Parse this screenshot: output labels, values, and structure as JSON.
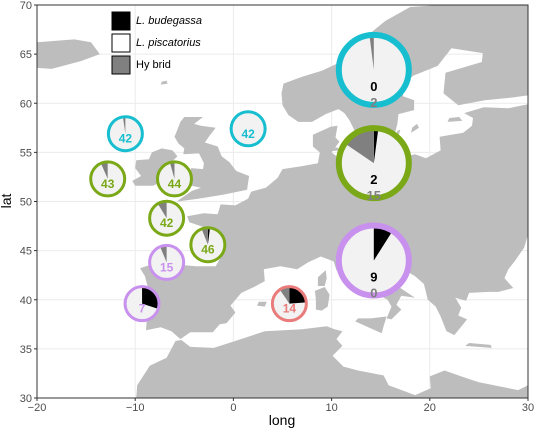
{
  "chart_data": {
    "type": "map-pie",
    "xlabel": "long",
    "ylabel": "lat",
    "xlim": [
      -20,
      30
    ],
    "ylim": [
      30,
      70
    ],
    "xticks": [
      -20,
      -10,
      0,
      10,
      20,
      30
    ],
    "yticks": [
      30,
      35,
      40,
      45,
      50,
      55,
      60,
      65,
      70
    ],
    "xtick_labels": [
      "−20",
      "−10",
      "0",
      "10",
      "20",
      "30"
    ],
    "ytick_labels": [
      "30",
      "35",
      "40",
      "45",
      "50",
      "55",
      "60",
      "65",
      "70"
    ],
    "grid": true,
    "legend": {
      "placement": "top-left",
      "entries": [
        {
          "label": "L. budegassa",
          "color": "#000000",
          "italic": true
        },
        {
          "label": "L. piscatorius",
          "color": "#ffffff",
          "italic": true
        },
        {
          "label": "Hy brid",
          "color": "#808080",
          "italic": false
        }
      ]
    },
    "sites": [
      {
        "long": -11.0,
        "lat": 56.9,
        "ring_color": "#17becf",
        "budegassa": 0,
        "piscatorius": 42,
        "hybrid": 1,
        "labels": [
          {
            "text": "42",
            "color": "#17becf"
          }
        ]
      },
      {
        "long": 1.5,
        "lat": 57.4,
        "ring_color": "#17becf",
        "budegassa": 0,
        "piscatorius": 42,
        "hybrid": 0,
        "labels": [
          {
            "text": "42",
            "color": "#17becf"
          }
        ]
      },
      {
        "long": -12.8,
        "lat": 52.3,
        "ring_color": "#7aa817",
        "budegassa": 0,
        "piscatorius": 43,
        "hybrid": 3,
        "labels": [
          {
            "text": "43",
            "color": "#7aa817"
          }
        ]
      },
      {
        "long": -6.0,
        "lat": 52.3,
        "ring_color": "#7aa817",
        "budegassa": 0,
        "piscatorius": 44,
        "hybrid": 2,
        "labels": [
          {
            "text": "44",
            "color": "#7aa817"
          }
        ]
      },
      {
        "long": -6.8,
        "lat": 48.3,
        "ring_color": "#7aa817",
        "budegassa": 0,
        "piscatorius": 42,
        "hybrid": 4,
        "labels": [
          {
            "text": "42",
            "color": "#7aa817"
          }
        ]
      },
      {
        "long": -2.6,
        "lat": 45.6,
        "ring_color": "#7aa817",
        "budegassa": 1,
        "piscatorius": 46,
        "hybrid": 3,
        "labels": [
          {
            "text": "46",
            "color": "#7aa817"
          }
        ]
      },
      {
        "long": -6.8,
        "lat": 43.8,
        "ring_color": "#c991ee",
        "budegassa": 0,
        "piscatorius": 15,
        "hybrid": 1,
        "labels": [
          {
            "text": "15",
            "color": "#c991ee"
          }
        ]
      },
      {
        "long": -9.3,
        "lat": 39.6,
        "ring_color": "#c991ee",
        "budegassa": 3,
        "piscatorius": 7,
        "hybrid": 0,
        "labels": [
          {
            "text": "7",
            "color": "#c991ee"
          }
        ]
      },
      {
        "long": 5.7,
        "lat": 39.6,
        "ring_color": "#e97b7b",
        "budegassa": 5,
        "piscatorius": 14,
        "hybrid": 2,
        "labels": [
          {
            "text": "14",
            "color": "#e97b7b"
          }
        ]
      },
      {
        "long": 14.3,
        "lat": 63.4,
        "ring_color": "#17becf",
        "budegassa": 0,
        "piscatorius": 98,
        "hybrid": 2,
        "labels": [
          {
            "text": "0",
            "color": "#000000"
          },
          {
            "text": "2",
            "color": "#808080"
          }
        ]
      },
      {
        "long": 14.3,
        "lat": 53.9,
        "ring_color": "#7aa817",
        "budegassa": 2,
        "piscatorius": 80,
        "hybrid": 15,
        "labels": [
          {
            "text": "2",
            "color": "#000000"
          },
          {
            "text": "15",
            "color": "#808080"
          }
        ]
      },
      {
        "long": 14.3,
        "lat": 44.0,
        "ring_color": "#c991ee",
        "budegassa": 9,
        "piscatorius": 91,
        "hybrid": 0,
        "labels": [
          {
            "text": "9",
            "color": "#000000"
          },
          {
            "text": "0",
            "color": "#808080"
          }
        ]
      }
    ]
  },
  "colors": {
    "land": "#bdbdbd",
    "panel_background": "#ffffff",
    "grid": "#ebebeb",
    "pie_piscatorius": "#f2f2f2",
    "pie_budegassa": "#000000",
    "pie_hybrid": "#808080"
  }
}
